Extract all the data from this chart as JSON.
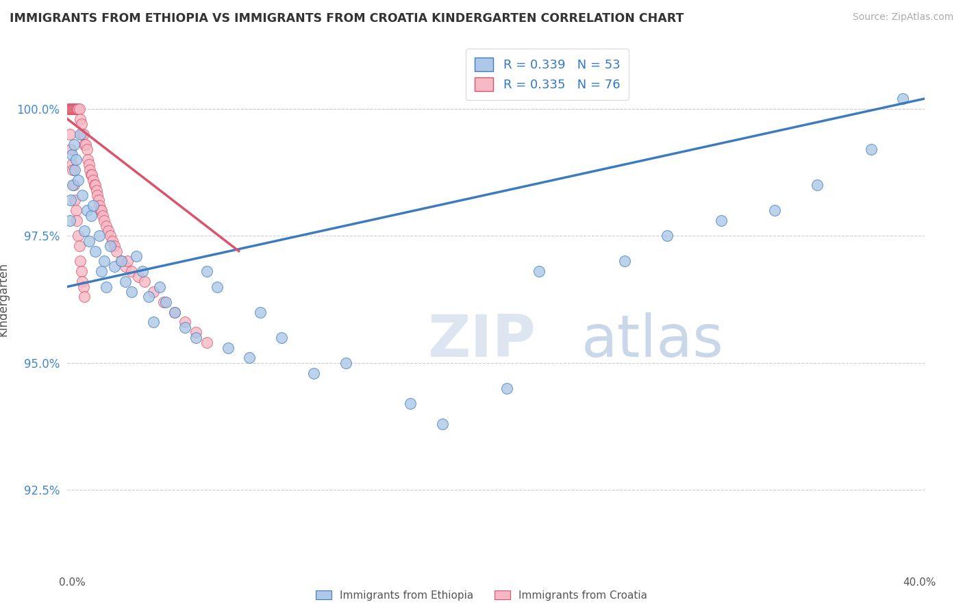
{
  "title": "IMMIGRANTS FROM ETHIOPIA VS IMMIGRANTS FROM CROATIA KINDERGARTEN CORRELATION CHART",
  "source": "Source: ZipAtlas.com",
  "ylabel": "Kindergarten",
  "xlim": [
    0.0,
    40.0
  ],
  "ylim": [
    91.2,
    101.3
  ],
  "ytick_vals": [
    92.5,
    95.0,
    97.5,
    100.0
  ],
  "legend_r_ethiopia": "R = 0.339",
  "legend_n_ethiopia": "N = 53",
  "legend_r_croatia": "R = 0.335",
  "legend_n_croatia": "N = 76",
  "color_ethiopia": "#adc8e8",
  "color_croatia": "#f5b8c4",
  "trendline_ethiopia": "#3d7bbf",
  "trendline_croatia": "#d9536a",
  "background_color": "#ffffff",
  "watermark_zip": "ZIP",
  "watermark_atlas": "atlas",
  "ethiopia_x": [
    0.1,
    0.15,
    0.2,
    0.25,
    0.3,
    0.35,
    0.4,
    0.5,
    0.6,
    0.7,
    0.8,
    0.9,
    1.0,
    1.1,
    1.2,
    1.3,
    1.5,
    1.6,
    1.7,
    1.8,
    2.0,
    2.2,
    2.5,
    2.7,
    3.0,
    3.2,
    3.5,
    3.8,
    4.0,
    4.3,
    4.6,
    5.0,
    5.5,
    6.0,
    6.5,
    7.0,
    7.5,
    8.5,
    9.0,
    10.0,
    11.5,
    13.0,
    16.0,
    17.5,
    20.5,
    22.0,
    26.0,
    28.0,
    30.5,
    33.0,
    35.0,
    37.5,
    39.0
  ],
  "ethiopia_y": [
    97.8,
    98.2,
    99.1,
    98.5,
    99.3,
    98.8,
    99.0,
    98.6,
    99.5,
    98.3,
    97.6,
    98.0,
    97.4,
    97.9,
    98.1,
    97.2,
    97.5,
    96.8,
    97.0,
    96.5,
    97.3,
    96.9,
    97.0,
    96.6,
    96.4,
    97.1,
    96.8,
    96.3,
    95.8,
    96.5,
    96.2,
    96.0,
    95.7,
    95.5,
    96.8,
    96.5,
    95.3,
    95.1,
    96.0,
    95.5,
    94.8,
    95.0,
    94.2,
    93.8,
    94.5,
    96.8,
    97.0,
    97.5,
    97.8,
    98.0,
    98.5,
    99.2,
    100.2
  ],
  "croatia_x": [
    0.05,
    0.08,
    0.1,
    0.12,
    0.15,
    0.18,
    0.2,
    0.22,
    0.25,
    0.28,
    0.3,
    0.32,
    0.35,
    0.38,
    0.4,
    0.42,
    0.45,
    0.48,
    0.5,
    0.55,
    0.6,
    0.65,
    0.7,
    0.75,
    0.8,
    0.85,
    0.9,
    0.95,
    1.0,
    1.05,
    1.1,
    1.15,
    1.2,
    1.25,
    1.3,
    1.35,
    1.4,
    1.45,
    1.5,
    1.55,
    1.6,
    1.65,
    1.7,
    1.8,
    1.9,
    2.0,
    2.1,
    2.2,
    2.3,
    2.5,
    2.7,
    3.0,
    3.3,
    3.6,
    4.0,
    4.5,
    5.0,
    5.5,
    6.0,
    6.5,
    0.1,
    0.15,
    0.2,
    0.25,
    0.3,
    0.35,
    0.4,
    0.45,
    0.5,
    0.55,
    0.6,
    0.65,
    0.7,
    0.75,
    0.8,
    2.8
  ],
  "croatia_y": [
    100.0,
    100.0,
    100.0,
    100.0,
    100.0,
    100.0,
    100.0,
    100.0,
    100.0,
    100.0,
    100.0,
    100.0,
    100.0,
    100.0,
    100.0,
    100.0,
    100.0,
    100.0,
    100.0,
    100.0,
    99.8,
    99.7,
    99.5,
    99.5,
    99.3,
    99.3,
    99.2,
    99.0,
    98.9,
    98.8,
    98.7,
    98.7,
    98.6,
    98.5,
    98.5,
    98.4,
    98.3,
    98.2,
    98.1,
    98.0,
    98.0,
    97.9,
    97.8,
    97.7,
    97.6,
    97.5,
    97.4,
    97.3,
    97.2,
    97.0,
    96.9,
    96.8,
    96.7,
    96.6,
    96.4,
    96.2,
    96.0,
    95.8,
    95.6,
    95.4,
    99.5,
    99.2,
    98.9,
    98.8,
    98.5,
    98.2,
    98.0,
    97.8,
    97.5,
    97.3,
    97.0,
    96.8,
    96.6,
    96.5,
    96.3,
    97.0
  ],
  "trendline_eth_x0": 0.0,
  "trendline_eth_x1": 40.0,
  "trendline_eth_y0": 96.5,
  "trendline_eth_y1": 100.2,
  "trendline_cro_x0": 0.0,
  "trendline_cro_x1": 8.0,
  "trendline_cro_y0": 99.8,
  "trendline_cro_y1": 97.2
}
